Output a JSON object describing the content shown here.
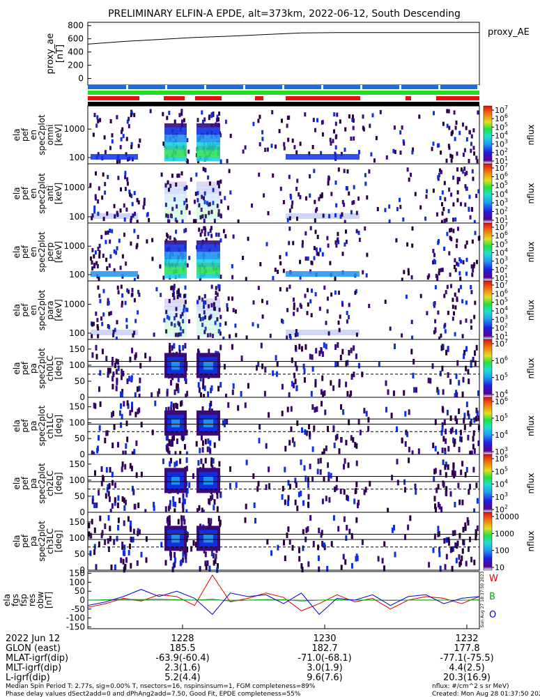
{
  "title": "PRELIMINARY ELFIN-A EPDE, alt=373km, 2022-06-12, South Descending",
  "colors": {
    "bar_blue": "#1e6fd6",
    "bar_green": "#22dd22",
    "bar_red": "#e61010",
    "bar_black": "#000000",
    "series_w": "#e00000",
    "series_b": "#00aa00",
    "series_o": "#0000dd"
  },
  "chart_data": [
    {
      "type": "line",
      "panel": "proxy_ae",
      "ylabel": "proxy_ae\n[nT]",
      "yticks": [
        "800",
        "600",
        "400",
        "200",
        "0"
      ],
      "ylim": [
        -100,
        850
      ],
      "x": [
        "27:00",
        "27:30",
        "28:00",
        "28:30",
        "29:00",
        "29:30",
        "30:00",
        "30:30",
        "31:00",
        "31:30",
        "32:00",
        "32:30"
      ],
      "series": [
        {
          "name": "proxy_AE",
          "values": [
            520,
            560,
            590,
            620,
            640,
            665,
            690,
            695,
            695,
            695,
            695,
            695
          ]
        }
      ]
    },
    {
      "type": "heatmap",
      "panel": "omni",
      "ylabel_lines": [
        "ela",
        "pef",
        "en",
        "spec2plot",
        "omni",
        "[keV]"
      ],
      "yticks": [
        "1000",
        "100"
      ],
      "zticks": [
        "10^7",
        "10^6",
        "10^5",
        "10^4",
        "10^3",
        "10^2",
        "10^1"
      ],
      "zlabel": "nflux"
    },
    {
      "type": "heatmap",
      "panel": "anti",
      "ylabel_lines": [
        "ela",
        "pef",
        "en",
        "spec2plot",
        "anti",
        "[keV]"
      ],
      "yticks": [
        "1000",
        "100"
      ],
      "zticks": [
        "10^7",
        "10^6",
        "10^5",
        "10^4",
        "10^3",
        "10^2",
        "10^1"
      ],
      "zlabel": "nflux"
    },
    {
      "type": "heatmap",
      "panel": "perp",
      "ylabel_lines": [
        "ela",
        "pef",
        "en",
        "spec2plot",
        "perp",
        "[keV]"
      ],
      "yticks": [
        "1000",
        "100"
      ],
      "zticks": [
        "10^7",
        "10^6",
        "10^5",
        "10^4",
        "10^3",
        "10^2",
        "10^1"
      ],
      "zlabel": "nflux"
    },
    {
      "type": "heatmap",
      "panel": "para",
      "ylabel_lines": [
        "ela",
        "pef",
        "en",
        "spec2plot",
        "para",
        "[keV]"
      ],
      "yticks": [
        "1000",
        "100"
      ],
      "zticks": [
        "10^7",
        "10^6",
        "10^5",
        "10^4",
        "10^3",
        "10^2",
        "10^1"
      ],
      "zlabel": "nflux"
    },
    {
      "type": "heatmap",
      "panel": "ch0LC",
      "ylabel_lines": [
        "ela",
        "pef",
        "pa",
        "spec2plot",
        "ch0LC",
        "[deg]"
      ],
      "yticks": [
        "150",
        "100",
        "50",
        "0"
      ],
      "zticks": [
        "10^7",
        "10^6",
        "10^5",
        "10^4"
      ],
      "zlabel": "nflux"
    },
    {
      "type": "heatmap",
      "panel": "ch1LC",
      "ylabel_lines": [
        "ela",
        "pef",
        "pa",
        "spec2plot",
        "ch1LC",
        "[deg]"
      ],
      "yticks": [
        "150",
        "100",
        "50",
        "0"
      ],
      "zticks": [
        "10^6",
        "10^5",
        "10^4",
        "10^3"
      ],
      "zlabel": "nflux"
    },
    {
      "type": "heatmap",
      "panel": "ch2LC",
      "ylabel_lines": [
        "ela",
        "pef",
        "pa",
        "spec2plot",
        "ch2LC",
        "[deg]"
      ],
      "yticks": [
        "150",
        "100",
        "50",
        "0"
      ],
      "zticks": [
        "10^6",
        "10^5",
        "10^4",
        "10^3",
        "10^2"
      ],
      "zlabel": "nflux"
    },
    {
      "type": "heatmap",
      "panel": "ch3LC",
      "ylabel_lines": [
        "ela",
        "pef",
        "pa",
        "spec2plot",
        "ch3LC",
        "[deg]"
      ],
      "yticks": [
        "150",
        "100",
        "50",
        "0"
      ],
      "zticks": [
        "10000",
        "1000",
        "100",
        "10"
      ],
      "zlabel": "nflux"
    },
    {
      "type": "line",
      "panel": "fgs",
      "ylabel_lines": [
        "ela",
        "fgs",
        "fsp",
        "res",
        "obw",
        "[nT]"
      ],
      "yticks": [
        "150",
        "100",
        "50",
        "0",
        "-50",
        "-100",
        "-150"
      ],
      "ylim": [
        -160,
        160
      ],
      "x": [
        "27:00",
        "27:15",
        "27:30",
        "27:45",
        "28:00",
        "28:15",
        "28:30",
        "28:45",
        "29:00",
        "29:15",
        "29:30",
        "29:45",
        "30:00",
        "30:15",
        "30:30",
        "30:45",
        "31:00",
        "31:15",
        "31:30",
        "31:45",
        "32:00",
        "32:15",
        "32:30"
      ],
      "series": [
        {
          "name": "W",
          "values": [
            -40,
            -20,
            10,
            -5,
            30,
            20,
            -30,
            140,
            -10,
            10,
            40,
            15,
            -60,
            -20,
            30,
            -10,
            10,
            -50,
            0,
            20,
            10,
            -20,
            20
          ]
        },
        {
          "name": "B",
          "values": [
            0,
            2,
            5,
            3,
            5,
            2,
            0,
            5,
            -5,
            0,
            3,
            2,
            -5,
            0,
            2,
            0,
            1,
            -2,
            0,
            1,
            0,
            -1,
            2
          ]
        },
        {
          "name": "O",
          "values": [
            -30,
            -10,
            20,
            60,
            20,
            50,
            10,
            -80,
            40,
            20,
            30,
            -20,
            40,
            -80,
            10,
            0,
            30,
            -30,
            20,
            30,
            -20,
            10,
            20
          ]
        }
      ]
    }
  ],
  "footer": {
    "date": "2022 Jun 12",
    "row_labels": [
      "GLON (east)",
      "MLAT-igrf(dip)",
      "MLT-igrf(dip)",
      "L-igrf(dip)"
    ],
    "time_ticks": [
      "1228",
      "1230",
      "1232"
    ],
    "columns": [
      [
        "185.5",
        "-63.9(-60.4)",
        "2.3(1.6)",
        "5.2(4.4)"
      ],
      [
        "182.7",
        "-71.0(-68.1)",
        "3.0(1.9)",
        "9.6(7.6)"
      ],
      [
        "177.8",
        "-77.1(-75.5)",
        "4.4(2.5)",
        "20.3(16.9)"
      ]
    ],
    "note_left_1": "Median Spin Period T: 2.77s, sig=0.00% T, nsectors=16, nspinsinsum=1, FGM completeness=89%",
    "note_left_2": "Phase delay values dSect2add=0 and dPhAng2add=7.50, Good Fit, EPDE completeness=55%",
    "note_right_1": "nflux: #/cm^2 s sr MeV)",
    "note_right_2": "Created: Mon Aug 28 01:37:50 2023",
    "side_stamp": "Sun Aug 27 18:37:50 2023"
  }
}
